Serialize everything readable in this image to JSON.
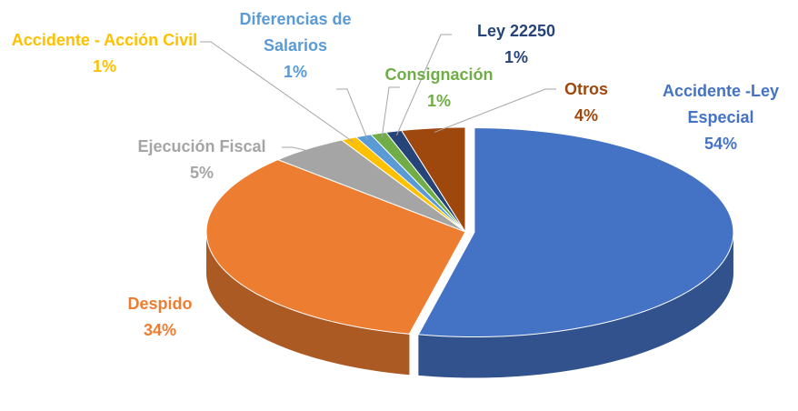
{
  "chart_data": {
    "type": "pie",
    "categories": [
      "Accidente -Ley Especial",
      "Despido",
      "Ejecución Fiscal",
      "Accidente - Acción Civil",
      "Diferencias de Salarios",
      "Consignación",
      "Ley 22250",
      "Otros"
    ],
    "values": [
      54,
      34,
      5,
      1,
      1,
      1,
      1,
      4
    ],
    "value_labels": [
      "54%",
      "34%",
      "5%",
      "1%",
      "1%",
      "1%",
      "1%",
      "4%"
    ],
    "colors": [
      "#4472c4",
      "#ed7d31",
      "#a5a5a5",
      "#ffc000",
      "#5b9bd5",
      "#70ad47",
      "#264478",
      "#9e480e"
    ]
  }
}
